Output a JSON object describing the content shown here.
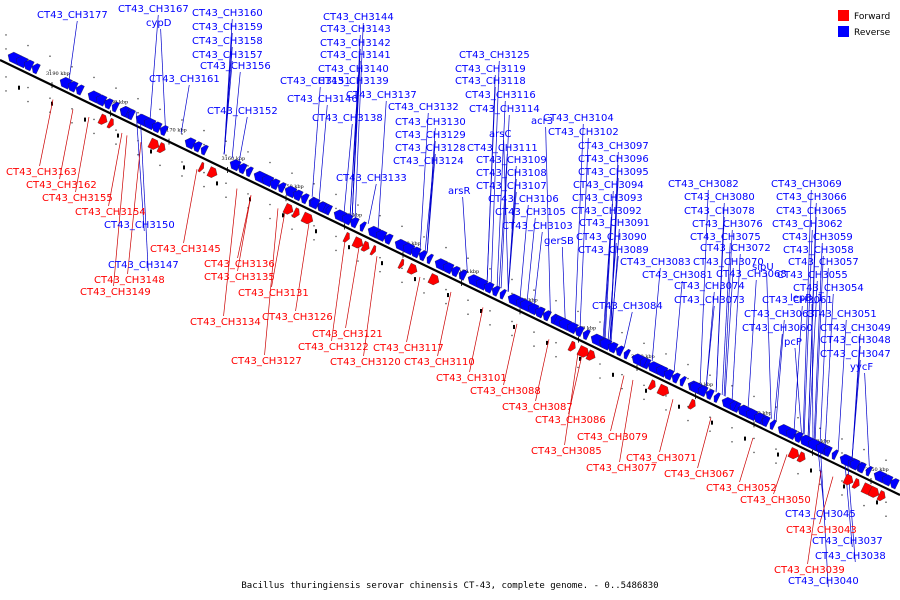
{
  "caption": "Bacillus thuringiensis serovar chinensis CT-43, complete genome. - 0..5486830",
  "legend": [
    {
      "label": "Forward",
      "color": "#ff0000"
    },
    {
      "label": "Reverse",
      "color": "#0000ff"
    }
  ],
  "colors": {
    "forward": "#ff0000",
    "reverse": "#0000ff",
    "forward_line": "#cc0000",
    "reverse_line": "#0000cc",
    "axis": "#000000"
  },
  "kbp_ticks": [
    "3190 kbp",
    "3180 kbp",
    "3170 kbp",
    "3160 kbp",
    "3150 kbp",
    "3140 kbp",
    "3130 kbp",
    "3120 kbp",
    "3110 kbp",
    "3100 kbp",
    "3090 kbp",
    "3080 kbp",
    "3070 kbp",
    "3060 kbp",
    "3050 kbp"
  ],
  "reverse_genes": [
    "CT43_CH3177",
    "CT43_CH3167",
    "cypD",
    "CT43_CH3160",
    "CT43_CH3159",
    "CT43_CH3158",
    "CT43_CH3157",
    "CT43_CH3156",
    "CT43_CH3161",
    "CT43_CH3151",
    "CT43_CH3152",
    "CT43_CH3144",
    "CT43_CH3143",
    "CT43_CH3142",
    "CT43_CH3141",
    "CT43_CH3140",
    "CT43_CH3139",
    "CT43_CH3146",
    "CT43_CH3137",
    "CT43_CH3138",
    "CT43_CH3132",
    "CT43_CH3130",
    "CT43_CH3129",
    "CT43_CH3128",
    "CT43_CH3124",
    "CT43_CH3133",
    "CT43_CH3125",
    "CT43_CH3119",
    "CT43_CH3118",
    "CT43_CH3116",
    "CT43_CH3114",
    "acr3",
    "arsC",
    "CT43_CH3111",
    "CT43_CH3109",
    "CT43_CH3108",
    "arsR",
    "CT43_CH3107",
    "CT43_CH3106",
    "CT43_CH3105",
    "CT43_CH3103",
    "CT43_CH3104",
    "CT43_CH3102",
    "CT43_CH3097",
    "CT43_CH3096",
    "CT43_CH3095",
    "CT43_CH3094",
    "CT43_CH3093",
    "CT43_CH3092",
    "CT43_CH3091",
    "gerSB",
    "CT43_CH3090",
    "CT43_CH3089",
    "CT43_CH3083",
    "CT43_CH3081",
    "CT43_CH3084",
    "CT43_CH3082",
    "CT43_CH3080",
    "CT43_CH3078",
    "CT43_CH3076",
    "CT43_CH3075",
    "CT43_CH3072",
    "CT43_CH3070",
    "CT43_CH3074",
    "CT43_CH3073",
    "CT43_CH3068",
    "CT43_CH3069",
    "CT43_CH3066",
    "CT43_CH3065",
    "CT43_CH3062",
    "CT43_CH3059",
    "CT43_CH3058",
    "CT43_CH3057",
    "CT43_CH3055",
    "sipU",
    "CT43_CH3054",
    "CT43_CH3061",
    "lepB_1",
    "CT43_CH3063",
    "CT43_CH3051",
    "CT43_CH3060",
    "CT43_CH3049",
    "pcP",
    "CT43_CH3048",
    "CT43_CH3047",
    "yycF",
    "CT43_CH3045",
    "CT43_CH3037",
    "CT43_CH3038",
    "CT43_CH3040",
    "CT43_CH3150",
    "CT43_CH3147"
  ],
  "forward_genes": [
    "CT43_CH3163",
    "CT43_CH3162",
    "CT43_CH3155",
    "CT43_CH3154",
    "CT43_CH3145",
    "CT43_CH3136",
    "CT43_CH3148",
    "CT43_CH3135",
    "CT43_CH3149",
    "CT43_CH3131",
    "CT43_CH3134",
    "CT43_CH3126",
    "CT43_CH3121",
    "CT43_CH3122",
    "CT43_CH3117",
    "CT43_CH3127",
    "CT43_CH3120",
    "CT43_CH3110",
    "CT43_CH3101",
    "CT43_CH3088",
    "CT43_CH3087",
    "CT43_CH3086",
    "CT43_CH3085",
    "CT43_CH3079",
    "CT43_CH3077",
    "CT43_CH3071",
    "CT43_CH3067",
    "CT43_CH3052",
    "CT43_CH3050",
    "CT43_CH3043",
    "CT43_CH3039"
  ]
}
